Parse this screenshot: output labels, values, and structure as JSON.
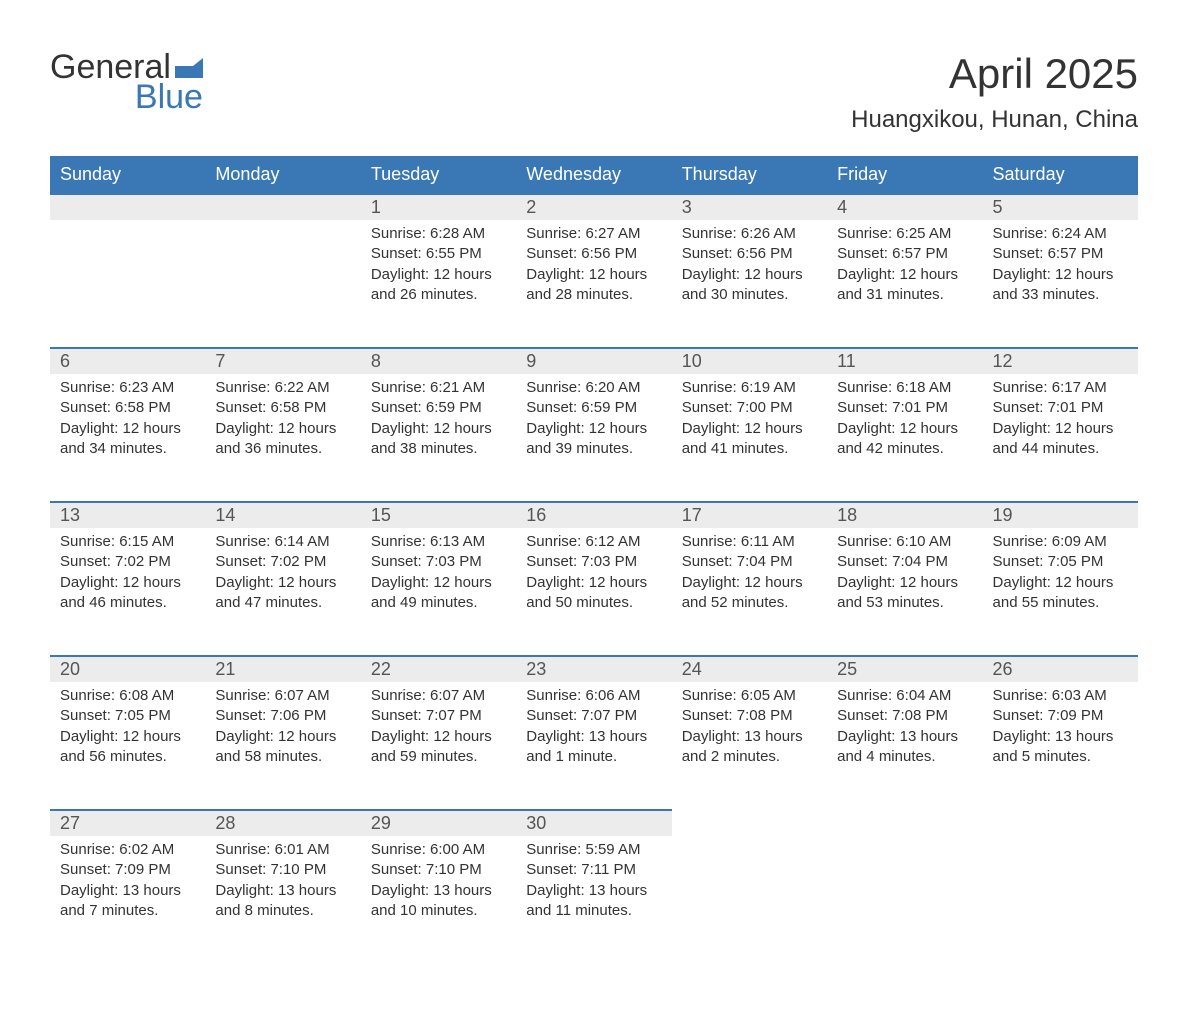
{
  "logo": {
    "word1": "General",
    "word2": "Blue",
    "flag_color": "#3a78b5"
  },
  "title": "April 2025",
  "subtitle": "Huangxikou, Hunan, China",
  "colors": {
    "header_bg": "#3a78b5",
    "header_text": "#ffffff",
    "daynum_bg": "#ececec",
    "daynum_border": "#3a78b5",
    "text": "#333333"
  },
  "dayHeaders": [
    "Sunday",
    "Monday",
    "Tuesday",
    "Wednesday",
    "Thursday",
    "Friday",
    "Saturday"
  ],
  "weeks": [
    [
      null,
      null,
      {
        "n": "1",
        "sr": "6:28 AM",
        "ss": "6:55 PM",
        "dl": "12 hours and 26 minutes."
      },
      {
        "n": "2",
        "sr": "6:27 AM",
        "ss": "6:56 PM",
        "dl": "12 hours and 28 minutes."
      },
      {
        "n": "3",
        "sr": "6:26 AM",
        "ss": "6:56 PM",
        "dl": "12 hours and 30 minutes."
      },
      {
        "n": "4",
        "sr": "6:25 AM",
        "ss": "6:57 PM",
        "dl": "12 hours and 31 minutes."
      },
      {
        "n": "5",
        "sr": "6:24 AM",
        "ss": "6:57 PM",
        "dl": "12 hours and 33 minutes."
      }
    ],
    [
      {
        "n": "6",
        "sr": "6:23 AM",
        "ss": "6:58 PM",
        "dl": "12 hours and 34 minutes."
      },
      {
        "n": "7",
        "sr": "6:22 AM",
        "ss": "6:58 PM",
        "dl": "12 hours and 36 minutes."
      },
      {
        "n": "8",
        "sr": "6:21 AM",
        "ss": "6:59 PM",
        "dl": "12 hours and 38 minutes."
      },
      {
        "n": "9",
        "sr": "6:20 AM",
        "ss": "6:59 PM",
        "dl": "12 hours and 39 minutes."
      },
      {
        "n": "10",
        "sr": "6:19 AM",
        "ss": "7:00 PM",
        "dl": "12 hours and 41 minutes."
      },
      {
        "n": "11",
        "sr": "6:18 AM",
        "ss": "7:01 PM",
        "dl": "12 hours and 42 minutes."
      },
      {
        "n": "12",
        "sr": "6:17 AM",
        "ss": "7:01 PM",
        "dl": "12 hours and 44 minutes."
      }
    ],
    [
      {
        "n": "13",
        "sr": "6:15 AM",
        "ss": "7:02 PM",
        "dl": "12 hours and 46 minutes."
      },
      {
        "n": "14",
        "sr": "6:14 AM",
        "ss": "7:02 PM",
        "dl": "12 hours and 47 minutes."
      },
      {
        "n": "15",
        "sr": "6:13 AM",
        "ss": "7:03 PM",
        "dl": "12 hours and 49 minutes."
      },
      {
        "n": "16",
        "sr": "6:12 AM",
        "ss": "7:03 PM",
        "dl": "12 hours and 50 minutes."
      },
      {
        "n": "17",
        "sr": "6:11 AM",
        "ss": "7:04 PM",
        "dl": "12 hours and 52 minutes."
      },
      {
        "n": "18",
        "sr": "6:10 AM",
        "ss": "7:04 PM",
        "dl": "12 hours and 53 minutes."
      },
      {
        "n": "19",
        "sr": "6:09 AM",
        "ss": "7:05 PM",
        "dl": "12 hours and 55 minutes."
      }
    ],
    [
      {
        "n": "20",
        "sr": "6:08 AM",
        "ss": "7:05 PM",
        "dl": "12 hours and 56 minutes."
      },
      {
        "n": "21",
        "sr": "6:07 AM",
        "ss": "7:06 PM",
        "dl": "12 hours and 58 minutes."
      },
      {
        "n": "22",
        "sr": "6:07 AM",
        "ss": "7:07 PM",
        "dl": "12 hours and 59 minutes."
      },
      {
        "n": "23",
        "sr": "6:06 AM",
        "ss": "7:07 PM",
        "dl": "13 hours and 1 minute."
      },
      {
        "n": "24",
        "sr": "6:05 AM",
        "ss": "7:08 PM",
        "dl": "13 hours and 2 minutes."
      },
      {
        "n": "25",
        "sr": "6:04 AM",
        "ss": "7:08 PM",
        "dl": "13 hours and 4 minutes."
      },
      {
        "n": "26",
        "sr": "6:03 AM",
        "ss": "7:09 PM",
        "dl": "13 hours and 5 minutes."
      }
    ],
    [
      {
        "n": "27",
        "sr": "6:02 AM",
        "ss": "7:09 PM",
        "dl": "13 hours and 7 minutes."
      },
      {
        "n": "28",
        "sr": "6:01 AM",
        "ss": "7:10 PM",
        "dl": "13 hours and 8 minutes."
      },
      {
        "n": "29",
        "sr": "6:00 AM",
        "ss": "7:10 PM",
        "dl": "13 hours and 10 minutes."
      },
      {
        "n": "30",
        "sr": "5:59 AM",
        "ss": "7:11 PM",
        "dl": "13 hours and 11 minutes."
      },
      null,
      null,
      null
    ]
  ],
  "labels": {
    "sunrise": "Sunrise: ",
    "sunset": "Sunset: ",
    "daylight": "Daylight: "
  }
}
